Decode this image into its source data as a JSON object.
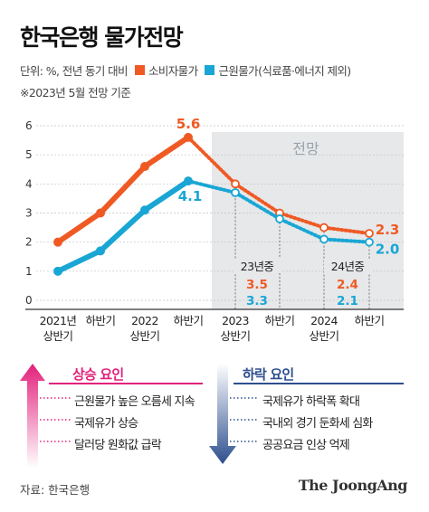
{
  "header": {
    "title": "한국은행 물가전망",
    "unit": "단위: %, 전년 동기 대비",
    "legend_cpi": "소비자물가",
    "legend_core": "근원물가(식료품·에너지 제외)",
    "note": "※2023년 5월 전망 기준"
  },
  "colors": {
    "cpi": "#ef5a24",
    "core": "#19a6d4",
    "forecast_bg": "#e6e8ea",
    "up": "#e2217b",
    "down": "#2d4f8e"
  },
  "chart_data": {
    "type": "line",
    "forecast_label": "전망",
    "categories": [
      "2021년 상반기",
      "하반기",
      "2022 상반기",
      "하반기",
      "2023 상반기",
      "하반기",
      "2024 상반기",
      "하반기"
    ],
    "x_ticks": [
      {
        "l1": "2021년",
        "l2": "상반기"
      },
      {
        "l1": "하반기",
        "l2": ""
      },
      {
        "l1": "2022",
        "l2": "상반기"
      },
      {
        "l1": "하반기",
        "l2": ""
      },
      {
        "l1": "2023",
        "l2": "상반기"
      },
      {
        "l1": "하반기",
        "l2": ""
      },
      {
        "l1": "2024",
        "l2": "상반기"
      },
      {
        "l1": "하반기",
        "l2": ""
      }
    ],
    "y_ticks": [
      "0",
      "1",
      "2",
      "3",
      "4",
      "5",
      "6"
    ],
    "ylim": [
      0,
      6
    ],
    "forecast_start_index": 4,
    "series": [
      {
        "name": "소비자물가",
        "values": [
          2.0,
          3.0,
          4.6,
          5.6,
          4.0,
          3.0,
          2.5,
          2.3
        ]
      },
      {
        "name": "근원물가(식료품·에너지 제외)",
        "values": [
          1.0,
          1.7,
          3.1,
          4.1,
          3.7,
          2.8,
          2.1,
          2.0
        ]
      }
    ],
    "labels": {
      "cpi_peak": "5.6",
      "core_peak": "4.1",
      "cpi_end": "2.3",
      "core_end": "2.0"
    },
    "annual": [
      {
        "label": "23년중",
        "cpi": "3.5",
        "core": "3.3"
      },
      {
        "label": "24년중",
        "cpi": "2.4",
        "core": "2.1"
      }
    ]
  },
  "factors": {
    "up_title": "상승 요인",
    "up_items": [
      "근원물가 높은 오름세 지속",
      "국제유가 상승",
      "달러당 원화값 급락"
    ],
    "down_title": "하락 요인",
    "down_items": [
      "국제유가 하락폭 확대",
      "국내외 경기 둔화세 심화",
      "공공요금 인상 억제"
    ]
  },
  "footer": {
    "source": "자료: 한국은행",
    "brand": "The JoongAng"
  }
}
